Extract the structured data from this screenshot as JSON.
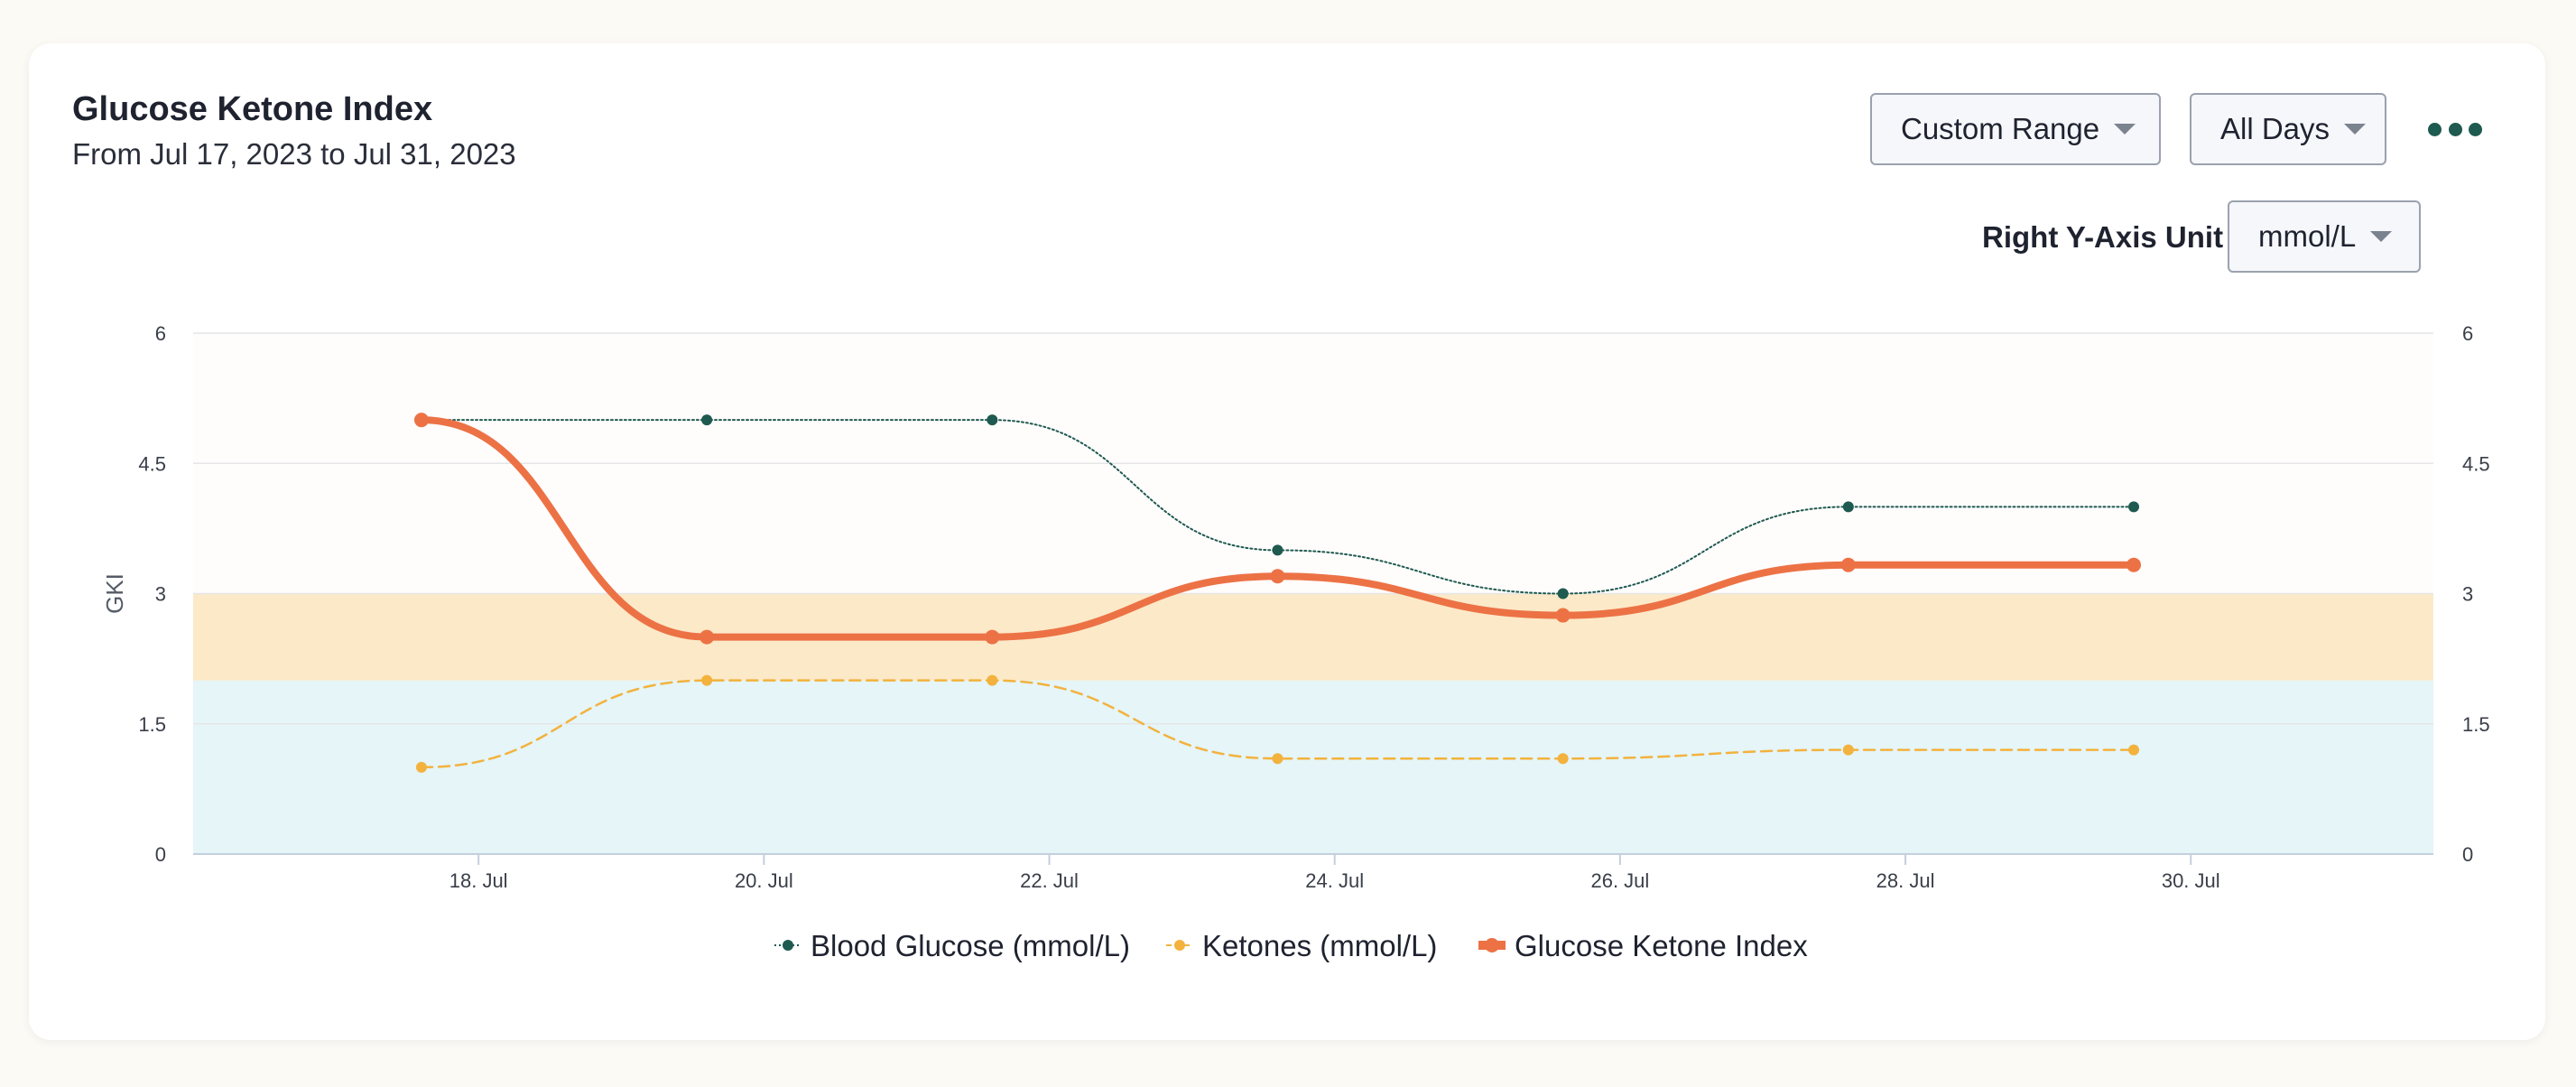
{
  "header": {
    "title": "Glucose Ketone Index",
    "subtitle": "From Jul 17, 2023 to Jul 31, 2023"
  },
  "controls": {
    "range_select": "Custom Range",
    "days_select": "All Days",
    "more_menu_icon": "more-horizontal-icon",
    "right_axis_unit_label": "Right Y-Axis Unit",
    "right_axis_unit_select": "mmol/L"
  },
  "chart_data": {
    "type": "line",
    "title": "Glucose Ketone Index",
    "xlabel": "",
    "ylabel": "GKI",
    "x_tick_labels": [
      "18. Jul",
      "20. Jul",
      "22. Jul",
      "24. Jul",
      "26. Jul",
      "28. Jul",
      "30. Jul"
    ],
    "x_ticks": [
      18,
      20,
      22,
      24,
      26,
      28,
      30
    ],
    "x_range": [
      16,
      31.7
    ],
    "y_ticks_left": [
      "0",
      "1.5",
      "3",
      "4.5",
      "6"
    ],
    "y_ticks_right": [
      "0",
      "1.5",
      "3",
      "4.5",
      "6"
    ],
    "ylim": [
      0,
      6
    ],
    "grid": true,
    "legend_position": "bottom",
    "bands": [
      {
        "from": 0,
        "to": 2,
        "color": "#e5f5f8"
      },
      {
        "from": 2,
        "to": 3,
        "color": "#fce9c8"
      },
      {
        "from": 3,
        "to": 6,
        "color": "#fffcfc"
      }
    ],
    "series": [
      {
        "name": "Blood Glucose (mmol/L)",
        "color": "#1e5a4f",
        "style": "dotted",
        "x": [
          17.6,
          19.6,
          21.6,
          23.6,
          25.6,
          27.6,
          29.6
        ],
        "values": [
          5,
          5,
          5,
          3.5,
          3,
          4,
          4
        ]
      },
      {
        "name": "Ketones (mmol/L)",
        "color": "#f3b23d",
        "style": "dashed",
        "x": [
          17.6,
          19.6,
          21.6,
          23.6,
          25.6,
          27.6,
          29.6
        ],
        "values": [
          1,
          2,
          2,
          1.1,
          1.1,
          1.2,
          1.2
        ]
      },
      {
        "name": "Glucose Ketone Index",
        "color": "#ec7245",
        "style": "solid",
        "x": [
          17.6,
          19.6,
          21.6,
          23.6,
          25.6,
          27.6,
          29.6
        ],
        "values": [
          5,
          2.5,
          2.5,
          3.2,
          2.75,
          3.33,
          3.33
        ]
      }
    ]
  }
}
